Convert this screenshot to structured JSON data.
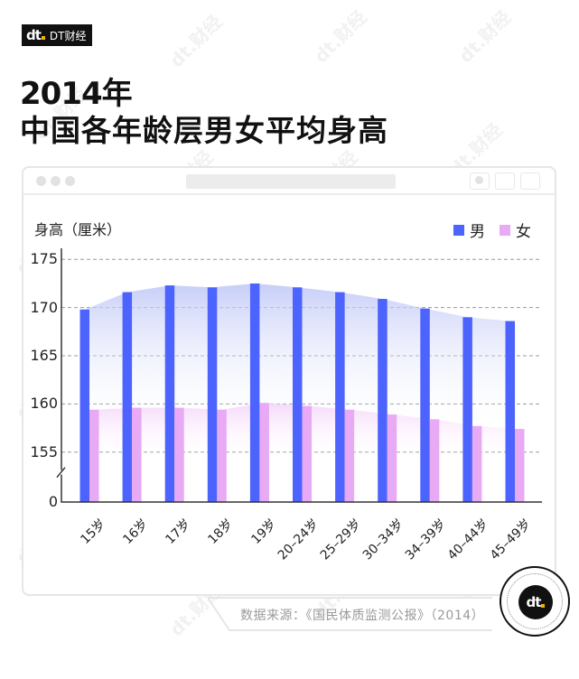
{
  "brand": {
    "mark": "dt",
    "name": "DT财经"
  },
  "title": {
    "line1": "2014年",
    "line2": "中国各年龄层男女平均身高"
  },
  "window": {
    "url_bar": ""
  },
  "chart": {
    "ylabel": "身高（厘米）",
    "legend": [
      {
        "label": "男",
        "color": "#4d63fe"
      },
      {
        "label": "女",
        "color": "#e8a9f5"
      }
    ]
  },
  "source": {
    "text": "数据来源：《国民体质监测公报》（2014）"
  },
  "watermark": {
    "text": "dt.财经"
  },
  "chart_data": {
    "type": "bar",
    "title": "2014年 中国各年龄层男女平均身高",
    "xlabel": "",
    "ylabel": "身高（厘米）",
    "categories": [
      "15岁",
      "16岁",
      "17岁",
      "18岁",
      "19岁",
      "20–24岁",
      "25–29岁",
      "30–34岁",
      "34–39岁",
      "40–44岁",
      "45–49岁"
    ],
    "series": [
      {
        "name": "男",
        "color": "#4d63fe",
        "values": [
          169.8,
          171.6,
          172.3,
          172.1,
          172.5,
          172.1,
          171.6,
          170.9,
          169.9,
          169.0,
          168.6
        ]
      },
      {
        "name": "女",
        "color": "#e8a9f5",
        "values": [
          159.4,
          159.6,
          159.6,
          159.4,
          160.1,
          159.8,
          159.4,
          158.9,
          158.4,
          157.7,
          157.4
        ]
      }
    ],
    "yticks": [
      0,
      155,
      160,
      165,
      170,
      175
    ],
    "ylim": [
      150,
      176
    ],
    "axis_break": "between 0 and 155",
    "grid": "horizontal dashed",
    "legend_position": "top-right",
    "area_overlay": true
  }
}
